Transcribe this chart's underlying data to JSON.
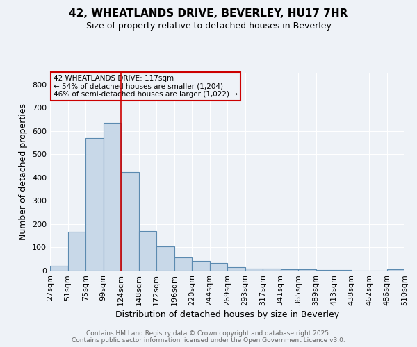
{
  "title": "42, WHEATLANDS DRIVE, BEVERLEY, HU17 7HR",
  "subtitle": "Size of property relative to detached houses in Beverley",
  "xlabel": "Distribution of detached houses by size in Beverley",
  "ylabel": "Number of detached properties",
  "bin_labels": [
    "27sqm",
    "51sqm",
    "75sqm",
    "99sqm",
    "124sqm",
    "148sqm",
    "172sqm",
    "196sqm",
    "220sqm",
    "244sqm",
    "269sqm",
    "293sqm",
    "317sqm",
    "341sqm",
    "365sqm",
    "389sqm",
    "413sqm",
    "438sqm",
    "462sqm",
    "486sqm",
    "510sqm"
  ],
  "bar_heights": [
    20,
    168,
    570,
    635,
    425,
    170,
    105,
    57,
    42,
    32,
    16,
    10,
    8,
    6,
    5,
    4,
    3,
    0,
    0,
    6
  ],
  "bar_color": "#c8d8e8",
  "bar_edgecolor": "#5b8ab0",
  "background_color": "#eef2f7",
  "grid_color": "#ffffff",
  "property_line_x": 4,
  "annotation_line1": "42 WHEATLANDS DRIVE: 117sqm",
  "annotation_line2": "← 54% of detached houses are smaller (1,204)",
  "annotation_line3": "46% of semi-detached houses are larger (1,022) →",
  "annotation_box_edgecolor": "#cc0000",
  "vline_color": "#cc0000",
  "ylim": [
    0,
    850
  ],
  "yticks": [
    0,
    100,
    200,
    300,
    400,
    500,
    600,
    700,
    800
  ],
  "footer": "Contains HM Land Registry data © Crown copyright and database right 2025.\nContains public sector information licensed under the Open Government Licence v3.0."
}
